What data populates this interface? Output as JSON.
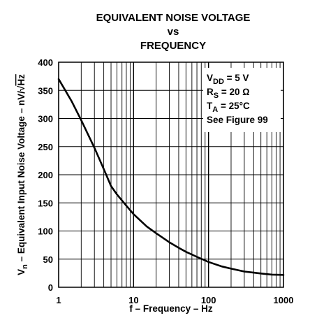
{
  "chart_data": {
    "type": "line",
    "title_lines": [
      "EQUIVALENT NOISE VOLTAGE",
      "vs",
      "FREQUENCY"
    ],
    "xlabel": "f – Frequency – Hz",
    "ylabel": {
      "symbol": "V",
      "subscript": "n",
      "text": " – Equivalent Input Noise Voltage – nV/",
      "root": "√",
      "root_arg": "Hz"
    },
    "x_scale": "log",
    "xlim": [
      1,
      1000
    ],
    "ylim": [
      0,
      400
    ],
    "x_ticks": [
      1,
      10,
      100,
      1000
    ],
    "x_tick_labels": [
      "1",
      "10",
      "100",
      "1000"
    ],
    "y_ticks": [
      0,
      50,
      100,
      150,
      200,
      250,
      300,
      350,
      400
    ],
    "y_tick_labels": [
      "0",
      "50",
      "100",
      "150",
      "200",
      "250",
      "300",
      "350",
      "400"
    ],
    "grid": true,
    "series": [
      {
        "x": [
          1,
          1.5,
          2,
          3,
          4,
          5,
          6,
          8,
          10,
          15,
          20,
          30,
          40,
          50,
          70,
          100,
          150,
          200,
          300,
          400,
          500,
          700,
          1000
        ],
        "y": [
          370,
          330,
          297,
          248,
          210,
          180,
          165,
          145,
          130,
          108,
          96,
          80,
          70,
          63,
          54,
          45,
          37,
          33,
          28,
          26,
          24.5,
          22.5,
          22
        ]
      }
    ],
    "annotation": {
      "lines": [
        {
          "main": "V",
          "sub": "DD",
          "rest": " = 5 V"
        },
        {
          "main": "R",
          "sub": "S",
          "rest": " = 20 Ω"
        },
        {
          "main": "T",
          "sub": "A",
          "rest": " = 25°C"
        },
        {
          "main": "See Figure 99",
          "sub": "",
          "rest": ""
        }
      ]
    }
  }
}
